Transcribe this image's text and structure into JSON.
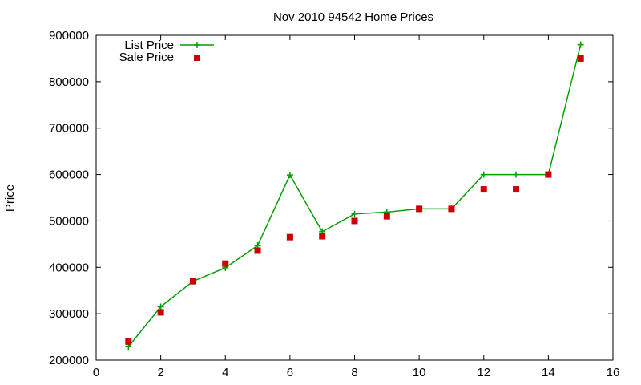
{
  "chart_data": {
    "type": "line",
    "title": "Nov 2010 94542 Home Prices",
    "xlabel": "",
    "ylabel": "Price",
    "xlim": [
      0,
      16
    ],
    "ylim": [
      200000,
      900000
    ],
    "xticks": [
      0,
      2,
      4,
      6,
      8,
      10,
      12,
      14,
      16
    ],
    "yticks": [
      200000,
      300000,
      400000,
      500000,
      600000,
      700000,
      800000,
      900000
    ],
    "grid": false,
    "legend_position": "top-left",
    "series": [
      {
        "name": "List Price",
        "style": "linespoints",
        "marker": "plus",
        "color": "#00a000",
        "x": [
          1,
          2,
          3,
          4,
          5,
          6,
          7,
          8,
          9,
          10,
          11,
          12,
          13,
          14,
          15
        ],
        "y": [
          229000,
          315000,
          370000,
          399000,
          447000,
          599000,
          477000,
          515000,
          519000,
          526000,
          526000,
          600000,
          600000,
          600000,
          880000
        ]
      },
      {
        "name": "Sale Price",
        "style": "points",
        "marker": "square",
        "color": "#cc0000",
        "x": [
          1,
          2,
          3,
          4,
          5,
          6,
          7,
          8,
          9,
          10,
          11,
          12,
          13,
          14,
          15
        ],
        "y": [
          240000,
          303000,
          370000,
          408000,
          436000,
          465000,
          467000,
          500000,
          510000,
          526000,
          526000,
          568000,
          568000,
          600000,
          850000
        ]
      }
    ]
  }
}
